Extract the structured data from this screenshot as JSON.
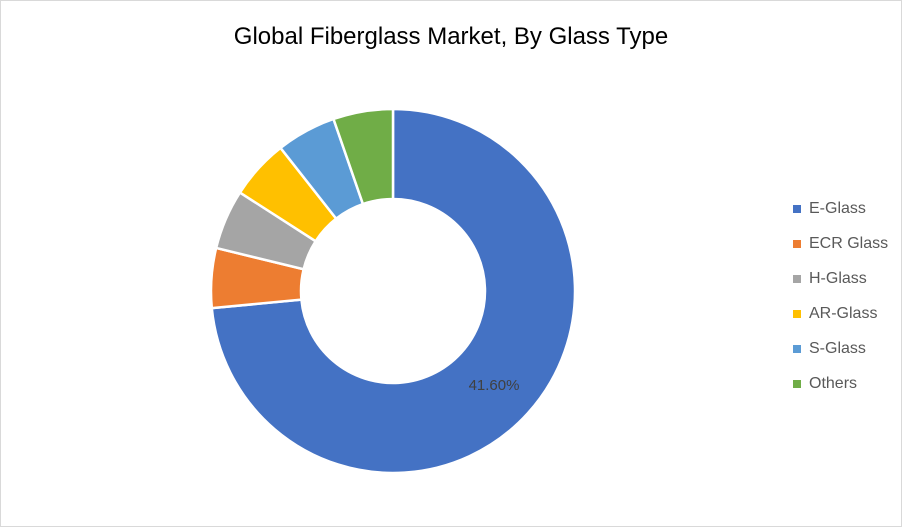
{
  "chart_data": {
    "type": "pie",
    "variant": "donut",
    "title": "Global Fiberglass Market, By Glass Type",
    "categories": [
      "E-Glass",
      "ECR Glass",
      "H-Glass",
      "AR-Glass",
      "S-Glass",
      "Others"
    ],
    "values": [
      41.6,
      3.0,
      3.0,
      3.0,
      3.0,
      3.0
    ],
    "colors": [
      "#4472c4",
      "#ed7d31",
      "#a5a5a5",
      "#ffc000",
      "#5b9bd5",
      "#70ad47"
    ],
    "data_labels": [
      "41.60%",
      "",
      "",
      "",
      "",
      ""
    ],
    "legend_position": "right"
  }
}
